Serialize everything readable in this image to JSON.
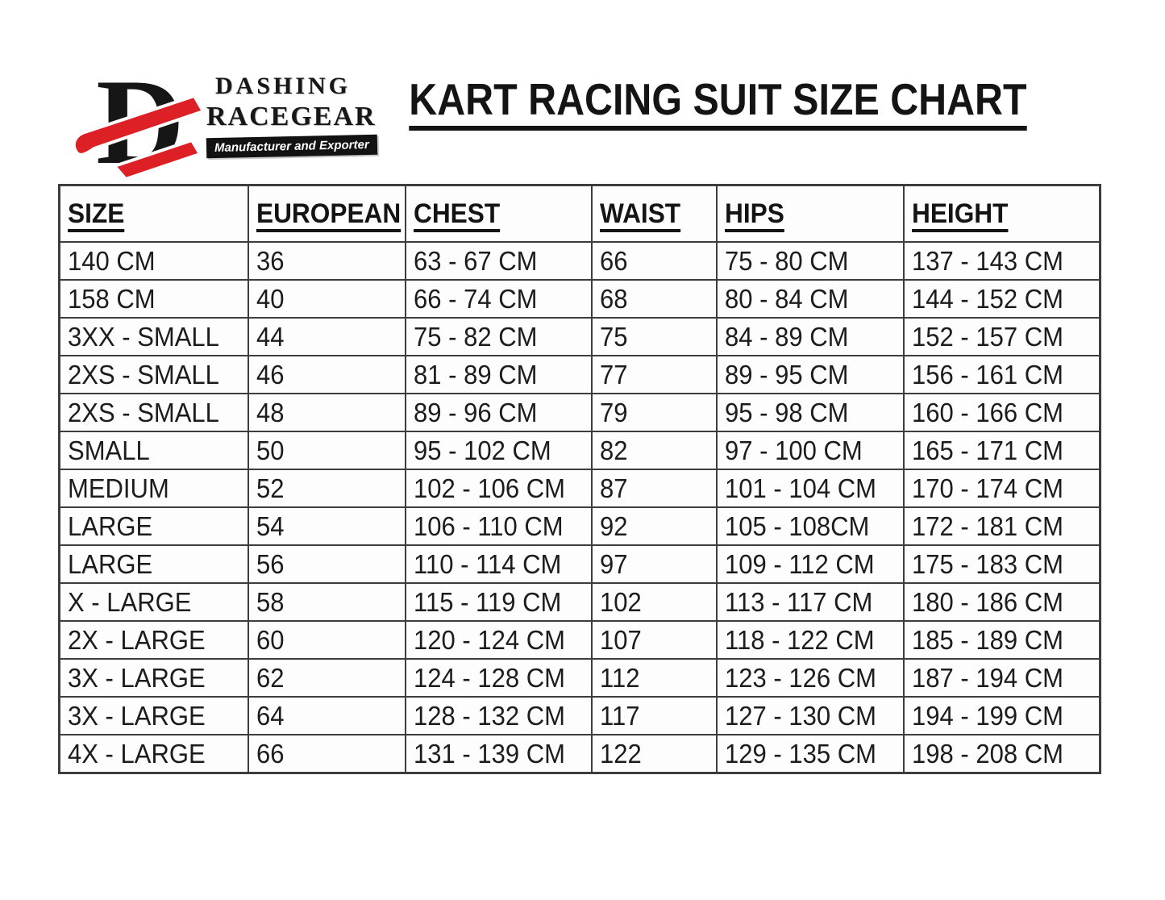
{
  "brand": {
    "monogram_letter": "D",
    "name_line1": "DASHING",
    "name_line2": "RACEGEAR",
    "tagline": "Manufacturer and Exporter",
    "colors": {
      "red": "#dd2025",
      "black": "#161616",
      "white": "#ffffff"
    }
  },
  "title": "KART RACING SUIT SIZE CHART",
  "chart_data": {
    "type": "table",
    "columns": [
      "SIZE",
      "EUROPEAN",
      "CHEST",
      "WAIST",
      "HIPS",
      "HEIGHT"
    ],
    "rows": [
      [
        "140 CM",
        "36",
        "63 - 67 CM",
        "66",
        "75 - 80 CM",
        "137 - 143 CM"
      ],
      [
        "158 CM",
        "40",
        "66 - 74 CM",
        "68",
        "80 - 84 CM",
        "144 - 152 CM"
      ],
      [
        "3XX - SMALL",
        "44",
        "75 - 82 CM",
        "75",
        "84 - 89 CM",
        "152 - 157 CM"
      ],
      [
        "2XS - SMALL",
        "46",
        "81 - 89 CM",
        "77",
        "89 - 95 CM",
        "156 - 161 CM"
      ],
      [
        "2XS - SMALL",
        "48",
        "89 - 96 CM",
        "79",
        "95 - 98 CM",
        "160 - 166 CM"
      ],
      [
        "SMALL",
        "50",
        "95 - 102 CM",
        "82",
        "97 - 100 CM",
        "165 - 171 CM"
      ],
      [
        "MEDIUM",
        "52",
        "102 - 106 CM",
        "87",
        "101 - 104 CM",
        "170 - 174 CM"
      ],
      [
        "LARGE",
        "54",
        "106 - 110 CM",
        "92",
        "105 - 108CM",
        "172 - 181 CM"
      ],
      [
        "LARGE",
        "56",
        "110 - 114 CM",
        "97",
        "109 - 112 CM",
        "175 - 183 CM"
      ],
      [
        "X - LARGE",
        "58",
        "115 - 119 CM",
        "102",
        "113 - 117 CM",
        "180 - 186 CM"
      ],
      [
        "2X - LARGE",
        "60",
        "120 - 124 CM",
        "107",
        "118 - 122 CM",
        "185 - 189 CM"
      ],
      [
        "3X - LARGE",
        "62",
        "124 - 128 CM",
        "112",
        "123 - 126 CM",
        "187 - 194 CM"
      ],
      [
        "3X - LARGE",
        "64",
        "128 - 132 CM",
        "117",
        "127 - 130 CM",
        "194 - 199 CM"
      ],
      [
        "4X - LARGE",
        "66",
        "131 - 139 CM",
        "122",
        "129 - 135 CM",
        "198 - 208 CM"
      ]
    ],
    "title": "KART RACING SUIT SIZE CHART",
    "layout": {
      "grid": true,
      "header_underlined": true
    }
  }
}
